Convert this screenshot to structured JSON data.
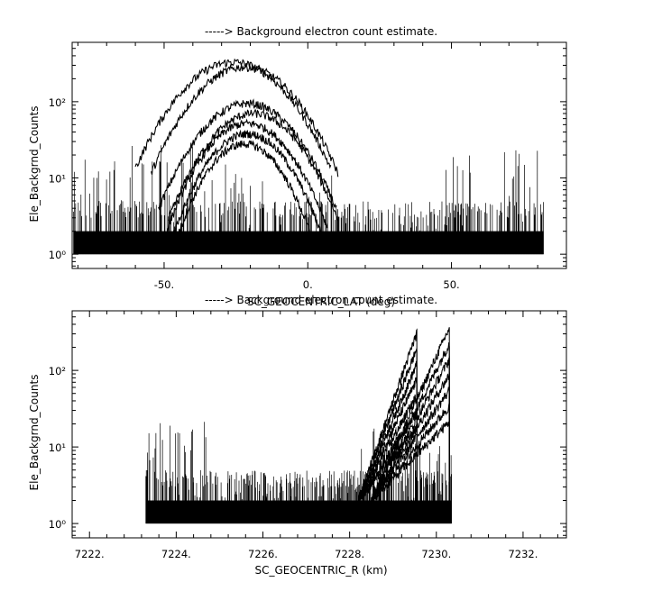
{
  "chart_data": [
    {
      "type": "line",
      "title": "-----> Background electron count estimate.",
      "xlabel": "SC_GEOCENTRIC_LAT (deg)",
      "ylabel": "Ele_Backgrnd_Counts",
      "xlim": [
        -82,
        90
      ],
      "ylim": [
        0.65,
        600
      ],
      "yscale": "log",
      "x_ticks": [
        -50,
        0,
        50
      ],
      "x_tick_labels": [
        "-50.",
        "0.",
        "50."
      ],
      "y_ticks": [
        1,
        10,
        100
      ],
      "y_tick_labels": [
        "10⁰",
        "10¹",
        "10²"
      ],
      "data_x_range": [
        -81.5,
        82
      ],
      "baseline_counts": [
        1,
        2
      ],
      "bump_peaks": [
        {
          "x": -26,
          "y": 330
        },
        {
          "x": -22,
          "y": 285
        },
        {
          "x": -21,
          "y": 95
        },
        {
          "x": -19,
          "y": 70
        },
        {
          "x": -21,
          "y": 52
        },
        {
          "x": -21,
          "y": 38
        },
        {
          "x": -22,
          "y": 28
        }
      ],
      "noise_regions": [
        {
          "x_range": [
            -81.5,
            -28
          ],
          "max_y": 28
        },
        {
          "x_range": [
            -28,
            10
          ],
          "max_y": 12
        },
        {
          "x_range": [
            10,
            47
          ],
          "max_y": 4
        },
        {
          "x_range": [
            47,
            82
          ],
          "max_y": 25
        }
      ],
      "color": "#000000",
      "grid": false
    },
    {
      "type": "line",
      "title": "-----> Background electron count estimate.",
      "xlabel": "SC_GEOCENTRIC_R (km)",
      "ylabel": "Ele_Backgrnd_Counts",
      "xlim": [
        7221.6,
        7233.0
      ],
      "ylim": [
        0.65,
        600
      ],
      "yscale": "log",
      "x_ticks": [
        7222,
        7224,
        7226,
        7228,
        7230,
        7232
      ],
      "x_tick_labels": [
        "7222.",
        "7224.",
        "7226.",
        "7228.",
        "7230.",
        "7232."
      ],
      "y_ticks": [
        1,
        10,
        100
      ],
      "y_tick_labels": [
        "10⁰",
        "10¹",
        "10²"
      ],
      "data_x_range": [
        7223.3,
        7230.35
      ],
      "baseline_counts": [
        1,
        2,
        3
      ],
      "ramps": [
        {
          "x_start": 7228.2,
          "x_end": 7229.55,
          "peak_y": 310
        },
        {
          "x_start": 7228.5,
          "x_end": 7230.3,
          "peak_y": 360
        }
      ],
      "noise_regions": [
        {
          "x_range": [
            7223.3,
            7224.9
          ],
          "max_y": 24
        },
        {
          "x_range": [
            7224.9,
            7226.3
          ],
          "max_y": 5
        },
        {
          "x_range": [
            7226.3,
            7228.2
          ],
          "max_y": 4
        },
        {
          "x_range": [
            7228.2,
            7230.35
          ],
          "max_y": 20
        }
      ],
      "color": "#000000",
      "grid": false
    }
  ]
}
